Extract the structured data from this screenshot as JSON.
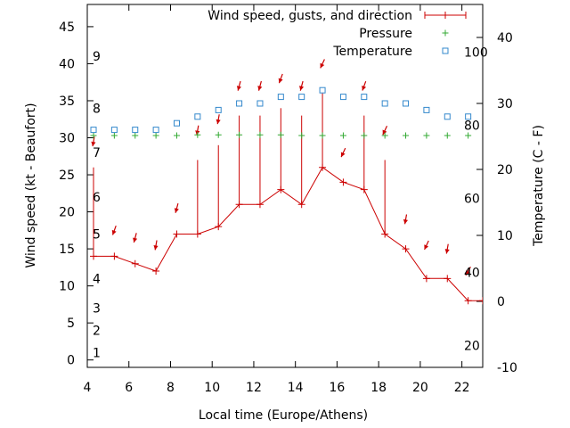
{
  "chart_data": {
    "type": "line",
    "xlabel": "Local time (Europe/Athens)",
    "ylabel": "Wind speed (kt - Beaufort)",
    "y2label": "Temperature (C - F)",
    "xlim": [
      4,
      23
    ],
    "ylim": [
      -1,
      48
    ],
    "y2lim": [
      -10,
      45
    ],
    "x_ticks": [
      4,
      6,
      8,
      10,
      12,
      14,
      16,
      18,
      20,
      22
    ],
    "y_ticks": [
      0,
      5,
      10,
      15,
      20,
      25,
      30,
      35,
      40,
      45
    ],
    "y2_ticks": [
      -10,
      0,
      10,
      20,
      30,
      40
    ],
    "fahrenheit_labels": [
      {
        "label": "20",
        "celsius": -6.7
      },
      {
        "label": "40",
        "celsius": 4.4
      },
      {
        "label": "60",
        "celsius": 15.6
      },
      {
        "label": "80",
        "celsius": 26.7
      },
      {
        "label": "100",
        "celsius": 37.8
      }
    ],
    "beaufort_labels": [
      {
        "label": "1",
        "kt": 1
      },
      {
        "label": "2",
        "kt": 4
      },
      {
        "label": "3",
        "kt": 7
      },
      {
        "label": "4",
        "kt": 11
      },
      {
        "label": "5",
        "kt": 17
      },
      {
        "label": "6",
        "kt": 22
      },
      {
        "label": "7",
        "kt": 28
      },
      {
        "label": "8",
        "kt": 34
      },
      {
        "label": "9",
        "kt": 41
      }
    ],
    "legend": [
      "Wind speed, gusts, and direction",
      "Pressure",
      "Temperature"
    ],
    "legend_position": "top-right",
    "colors": {
      "wind": "#cc0000",
      "pressure": "#33aa33",
      "temperature": "#3388cc"
    },
    "wind": {
      "x": [
        4.3,
        5.3,
        6.3,
        7.3,
        8.3,
        9.3,
        10.3,
        11.3,
        12.3,
        13.3,
        14.3,
        15.3,
        16.3,
        17.3,
        18.3,
        19.3,
        20.3,
        21.3,
        22.3,
        23
      ],
      "speed": [
        14,
        14,
        13,
        12,
        17,
        17,
        18,
        21,
        21,
        23,
        21,
        26,
        24,
        23,
        17,
        15,
        11,
        11,
        8,
        8
      ],
      "gust": [
        26,
        null,
        null,
        null,
        null,
        27,
        29,
        33,
        33,
        34,
        33,
        36,
        null,
        33,
        27,
        null,
        null,
        null,
        null,
        null
      ]
    },
    "pressure": {
      "x": [
        4.3,
        5.3,
        6.3,
        7.3,
        8.3,
        9.3,
        10.3,
        11.3,
        12.3,
        13.3,
        14.3,
        15.3,
        16.3,
        17.3,
        18.3,
        19.3,
        20.3,
        21.3,
        22.3
      ],
      "wind_axis_value": [
        30.3,
        30.3,
        30.3,
        30.3,
        30.3,
        30.4,
        30.4,
        30.4,
        30.4,
        30.4,
        30.3,
        30.3,
        30.3,
        30.3,
        30.3,
        30.3,
        30.3,
        30.3,
        30.3
      ]
    },
    "temperature": {
      "x": [
        4.3,
        5.3,
        6.3,
        7.3,
        8.3,
        9.3,
        10.3,
        11.3,
        12.3,
        13.3,
        14.3,
        15.3,
        16.3,
        17.3,
        18.3,
        19.3,
        20.3,
        21.3,
        22.3
      ],
      "celsius": [
        26,
        26,
        26,
        26,
        27,
        28,
        29,
        30,
        30,
        31,
        31,
        32,
        31,
        31,
        30,
        30,
        29,
        28,
        28
      ]
    },
    "direction_arrows": [
      {
        "x": 4.3,
        "kt": 29.5,
        "dir_deg": 10
      },
      {
        "x": 5.3,
        "kt": 17.5,
        "dir_deg": 20
      },
      {
        "x": 6.3,
        "kt": 16.5,
        "dir_deg": 15
      },
      {
        "x": 7.3,
        "kt": 15.5,
        "dir_deg": 10
      },
      {
        "x": 8.3,
        "kt": 20.5,
        "dir_deg": 15
      },
      {
        "x": 9.3,
        "kt": 31,
        "dir_deg": 10
      },
      {
        "x": 10.3,
        "kt": 32.5,
        "dir_deg": 10
      },
      {
        "x": 11.3,
        "kt": 37,
        "dir_deg": 15
      },
      {
        "x": 12.3,
        "kt": 37,
        "dir_deg": 15
      },
      {
        "x": 13.3,
        "kt": 38,
        "dir_deg": 20
      },
      {
        "x": 14.3,
        "kt": 37,
        "dir_deg": 15
      },
      {
        "x": 15.3,
        "kt": 40,
        "dir_deg": 25
      },
      {
        "x": 16.3,
        "kt": 28,
        "dir_deg": 25
      },
      {
        "x": 17.3,
        "kt": 37,
        "dir_deg": 20
      },
      {
        "x": 18.3,
        "kt": 31,
        "dir_deg": 25
      },
      {
        "x": 19.3,
        "kt": 19,
        "dir_deg": 10
      },
      {
        "x": 20.3,
        "kt": 15.5,
        "dir_deg": 25
      },
      {
        "x": 21.3,
        "kt": 15,
        "dir_deg": 10
      },
      {
        "x": 22.3,
        "kt": 12,
        "dir_deg": 30
      }
    ]
  }
}
